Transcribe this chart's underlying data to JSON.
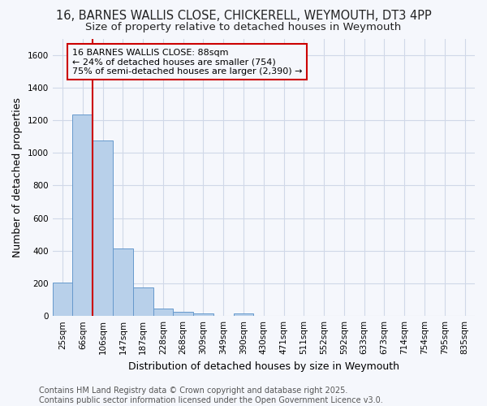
{
  "title_line1": "16, BARNES WALLIS CLOSE, CHICKERELL, WEYMOUTH, DT3 4PP",
  "title_line2": "Size of property relative to detached houses in Weymouth",
  "xlabel": "Distribution of detached houses by size in Weymouth",
  "ylabel": "Number of detached properties",
  "bar_labels": [
    "25sqm",
    "66sqm",
    "106sqm",
    "147sqm",
    "187sqm",
    "228sqm",
    "268sqm",
    "309sqm",
    "349sqm",
    "390sqm",
    "430sqm",
    "471sqm",
    "511sqm",
    "552sqm",
    "592sqm",
    "633sqm",
    "673sqm",
    "714sqm",
    "754sqm",
    "795sqm",
    "835sqm"
  ],
  "bar_values": [
    205,
    1235,
    1075,
    415,
    175,
    45,
    25,
    15,
    0,
    15,
    0,
    0,
    0,
    0,
    0,
    0,
    0,
    0,
    0,
    0,
    0
  ],
  "bar_color": "#b8d0ea",
  "bar_edge_color": "#6699cc",
  "annotation_box_text": "16 BARNES WALLIS CLOSE: 88sqm\n← 24% of detached houses are smaller (754)\n75% of semi-detached houses are larger (2,390) →",
  "vline_x": 1.5,
  "vline_color": "#cc0000",
  "ylim": [
    0,
    1700
  ],
  "yticks": [
    0,
    200,
    400,
    600,
    800,
    1000,
    1200,
    1400,
    1600
  ],
  "bg_color": "#f5f7fc",
  "grid_color": "#d0d8e8",
  "footer_text": "Contains HM Land Registry data © Crown copyright and database right 2025.\nContains public sector information licensed under the Open Government Licence v3.0.",
  "title_fontsize": 10.5,
  "subtitle_fontsize": 9.5,
  "axis_label_fontsize": 9,
  "tick_fontsize": 7.5,
  "annotation_fontsize": 8,
  "footer_fontsize": 7
}
